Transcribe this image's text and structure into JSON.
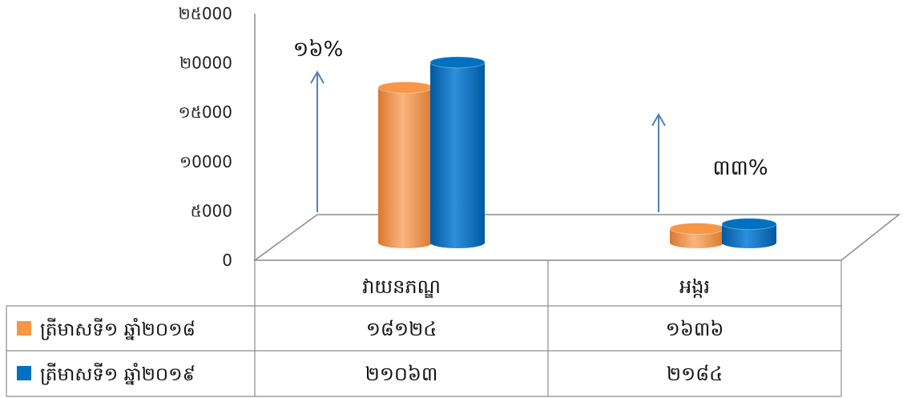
{
  "chart_data": {
    "type": "bar",
    "categories": [
      "វាយនភណ្ឌ",
      "អង្ករ"
    ],
    "series": [
      {
        "name": "ត្រីមាសទី១ ឆ្នាំ២០១៨",
        "values": [
          18124,
          1636
        ],
        "value_labels": [
          "១៨១២៤",
          "១៦៣៦"
        ],
        "color": "#F79646"
      },
      {
        "name": "ត្រីមាសទី១ ឆ្នាំ២០១៩",
        "values": [
          21063,
          2184
        ],
        "value_labels": [
          "២១០៦៣",
          "២១៨៤"
        ],
        "color": "#0070C0"
      }
    ],
    "ylim": [
      0,
      25000
    ],
    "y_ticks": [
      0,
      5000,
      10000,
      15000,
      20000,
      25000
    ],
    "y_tick_labels": [
      "0",
      "៥000",
      "១0000",
      "១៥000",
      "២0000",
      "២៥000"
    ],
    "annotations": [
      {
        "text": "១៦%",
        "category": "វាយនភណ្ឌ"
      },
      {
        "text": "៣៣%",
        "category": "អង្ករ"
      }
    ],
    "legend_placement": "data-table-left",
    "grid": false,
    "title": "",
    "xlabel": "",
    "ylabel": ""
  },
  "colors": {
    "series1": "#F79646",
    "series1_dark": "#D9782E",
    "series1_light": "#FBB580",
    "series2": "#0070C0",
    "series2_dark": "#0059A0",
    "series2_light": "#2E8FDA",
    "arrow": "#4F81BD",
    "axis": "#7F7F7F"
  }
}
